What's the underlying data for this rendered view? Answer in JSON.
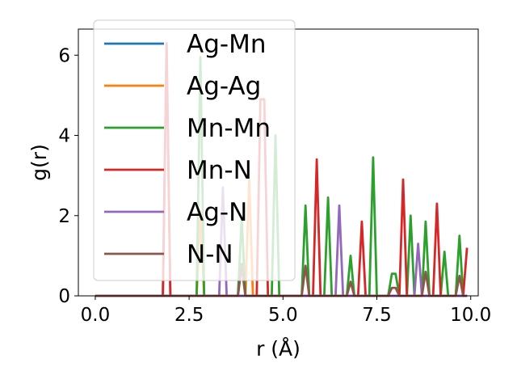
{
  "chart_data": {
    "type": "line",
    "title": "",
    "xlabel": "r (Å)",
    "ylabel": "g(r)",
    "xlim": [
      -0.45,
      10.2
    ],
    "ylim": [
      0,
      6.65
    ],
    "xticks": [
      0.0,
      2.5,
      5.0,
      7.5,
      10.0
    ],
    "xtick_labels": [
      "0.0",
      "2.5",
      "5.0",
      "7.5",
      "10.0"
    ],
    "yticks": [
      0,
      2,
      4,
      6
    ],
    "ytick_labels": [
      "0",
      "2",
      "4",
      "6"
    ],
    "grid": false,
    "legend_position": "upper-left",
    "series": [
      {
        "name": "Ag-Mn",
        "color": "#1f77b4",
        "peaks": [
          [
            1.9,
            6.3
          ],
          [
            3.9,
            0.8
          ]
        ]
      },
      {
        "name": "Ag-Ag",
        "color": "#ff7f0e",
        "peaks": [
          [
            2.8,
            2.1
          ],
          [
            4.1,
            2.9
          ]
        ]
      },
      {
        "name": "Mn-Mn",
        "color": "#2ca02c",
        "peaks": [
          [
            2.8,
            5.95
          ],
          [
            3.9,
            1.95
          ],
          [
            4.85,
            4.0
          ],
          [
            5.6,
            2.25
          ],
          [
            6.2,
            2.45
          ],
          [
            6.8,
            1.0
          ],
          [
            7.4,
            3.45
          ],
          [
            7.95,
            0.55
          ],
          [
            8.4,
            2.0
          ],
          [
            8.8,
            1.85
          ],
          [
            9.3,
            1.1
          ],
          [
            9.7,
            1.5
          ]
        ]
      },
      {
        "name": "Mn-N",
        "color": "#d62728",
        "peaks": [
          [
            1.9,
            6.3
          ],
          [
            4.45,
            4.9
          ],
          [
            5.9,
            3.4
          ],
          [
            7.1,
            1.85
          ],
          [
            8.15,
            2.9
          ],
          [
            9.1,
            2.3
          ],
          [
            9.9,
            1.2
          ]
        ]
      },
      {
        "name": "Ag-N",
        "color": "#9467bd",
        "peaks": [
          [
            3.4,
            2.7
          ],
          [
            6.5,
            2.25
          ],
          [
            8.6,
            1.3
          ]
        ]
      },
      {
        "name": "N-N",
        "color": "#8c564b",
        "peaks": [
          [
            3.9,
            0.75
          ],
          [
            5.6,
            0.75
          ],
          [
            6.8,
            0.35
          ],
          [
            7.95,
            0.2
          ],
          [
            8.8,
            0.6
          ],
          [
            9.7,
            0.5
          ]
        ]
      }
    ]
  }
}
